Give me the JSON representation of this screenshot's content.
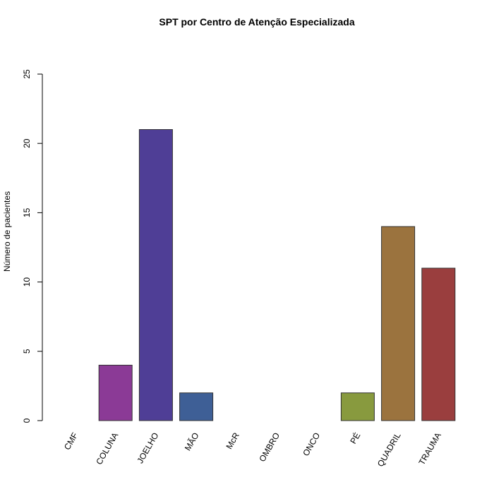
{
  "chart_data": {
    "type": "bar",
    "title": "SPT por Centro de Atenção Especializada",
    "xlabel": "",
    "ylabel": "Número de pacientes",
    "categories": [
      "CMF",
      "COLUNA",
      "JOELHO",
      "MÃO",
      "McR",
      "OMBRO",
      "ONCO",
      "PÉ",
      "QUADRIL",
      "TRAUMA"
    ],
    "values": [
      0,
      4,
      21,
      2,
      0,
      0,
      0,
      2,
      14,
      11
    ],
    "colors": [
      "#000000",
      "#8B3A96",
      "#4F3E96",
      "#3E5F96",
      "#000000",
      "#000000",
      "#000000",
      "#889A3E",
      "#9B733E",
      "#9A3E3E"
    ],
    "yticks": [
      0,
      5,
      10,
      15,
      20,
      25
    ],
    "ylim": [
      0,
      25
    ],
    "grid": false,
    "legend": "none"
  }
}
